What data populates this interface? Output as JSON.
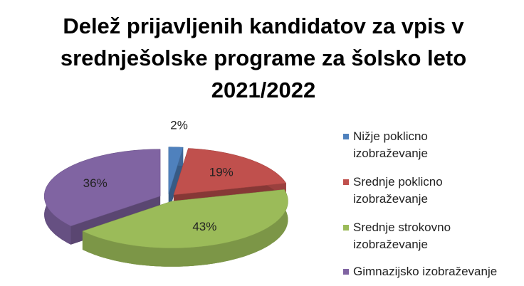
{
  "chart_data": {
    "type": "pie",
    "title": "Delež prijavljenih kandidatov za vpis v srednješolske programe za šolsko leto 2021/2022",
    "categories": [
      "Nižje poklicno izobraževanje",
      "Srednje poklicno izobraževanje",
      "Srednje strokovno izobraževanje",
      "Gimnazijsko izobraževanje"
    ],
    "values": [
      2,
      19,
      43,
      36
    ],
    "value_labels": [
      "2%",
      "19%",
      "43%",
      "36%"
    ],
    "colors": [
      "#4f81bd",
      "#c0504d",
      "#9bbb59",
      "#8064a2"
    ],
    "legend": "right"
  }
}
